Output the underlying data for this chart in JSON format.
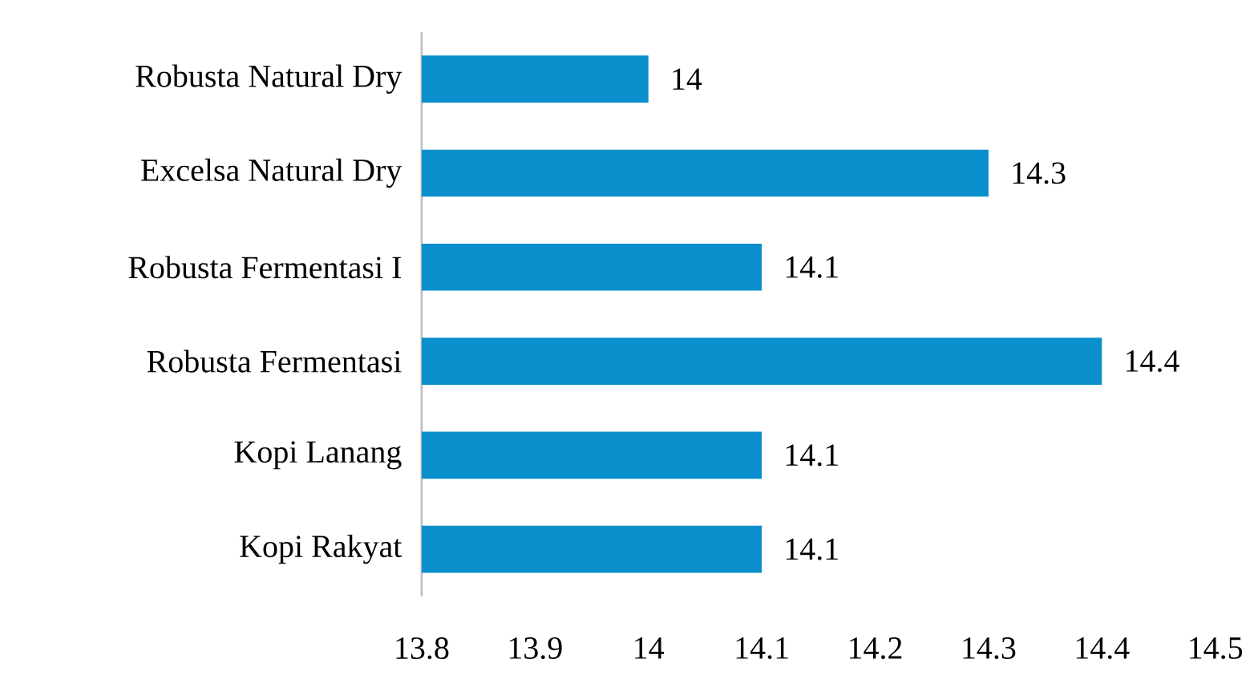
{
  "chart_data": {
    "type": "bar",
    "orientation": "horizontal",
    "categories": [
      "Robusta Natural Dry",
      "Excelsa Natural Dry",
      "Robusta Fermentasi I",
      "Robusta Fermentasi",
      "Kopi Lanang",
      "Kopi Rakyat"
    ],
    "values": [
      14,
      14.3,
      14.1,
      14.4,
      14.1,
      14.1
    ],
    "color": "#0a8fcc",
    "xlim": [
      13.8,
      14.5
    ],
    "xticks": [
      13.8,
      13.9,
      14,
      14.1,
      14.2,
      14.3,
      14.4,
      14.5
    ],
    "data_labels": true
  }
}
